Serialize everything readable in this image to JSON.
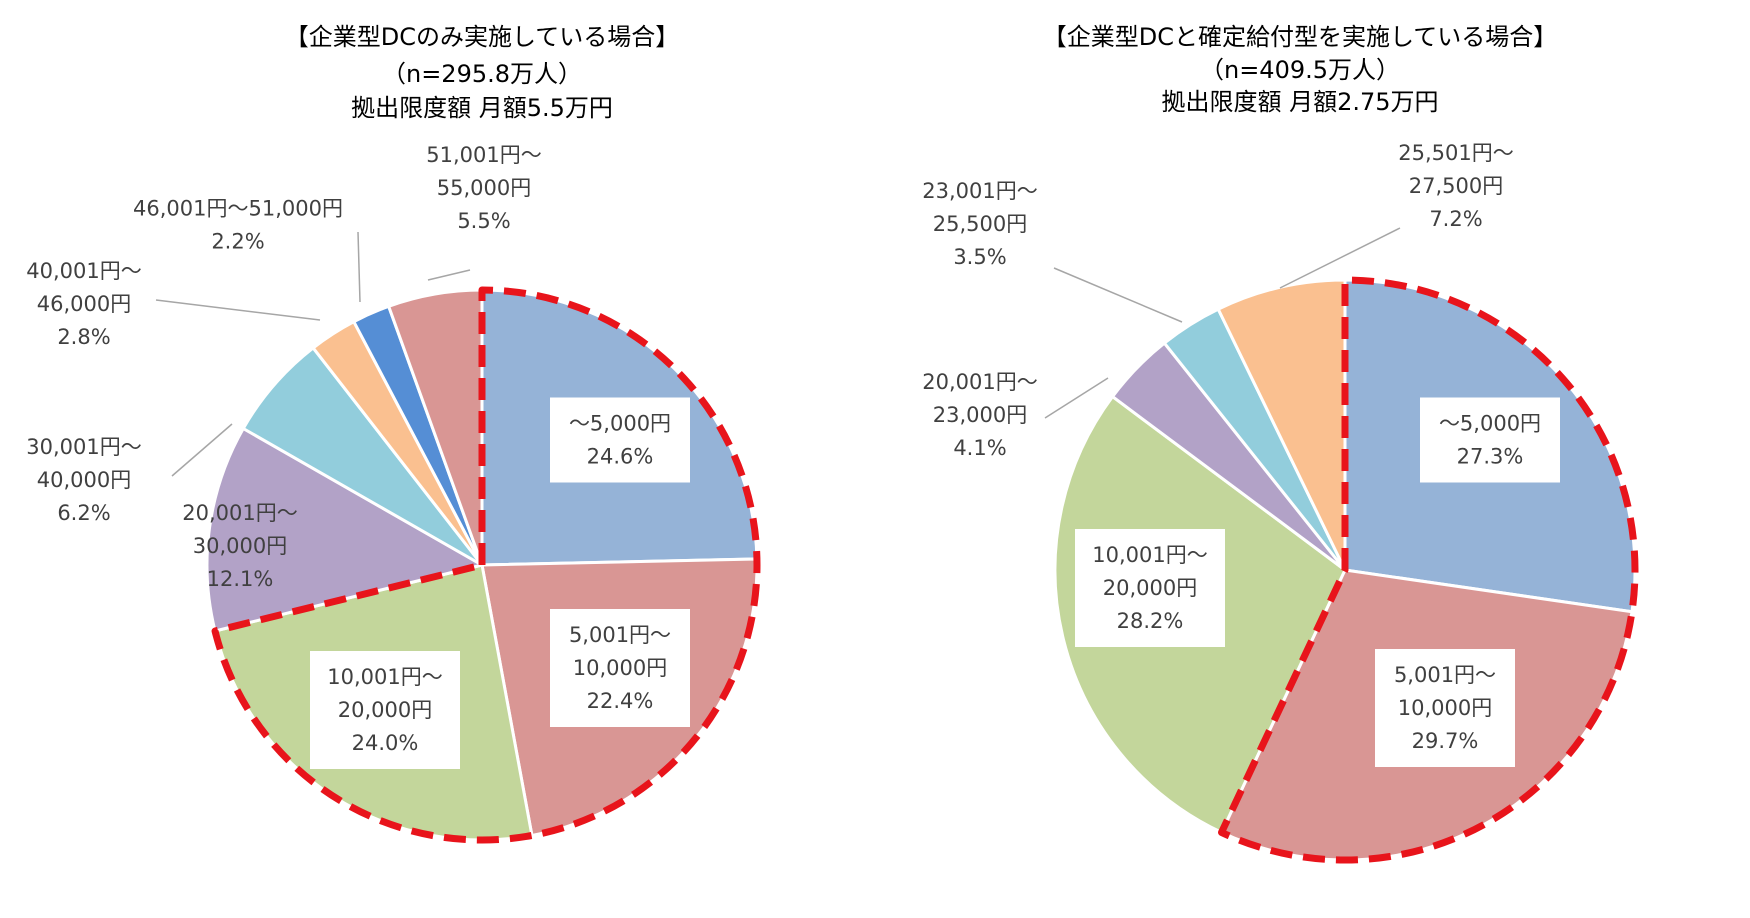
{
  "colors": {
    "c1": "#95b3d7",
    "c2": "#d99694",
    "c3": "#c3d69b",
    "c4": "#b2a2c7",
    "c5": "#92cddc",
    "c6": "#fac090",
    "c7": "#558ed5",
    "highlight": "#e8141b"
  },
  "chart_data": [
    {
      "type": "pie",
      "title_lines": [
        "【企業型DCのみ実施している場合】",
        "（n=295.8万人）",
        "拠出限度額 月額5.5万円"
      ],
      "slices": [
        {
          "label_lines": [
            "〜5,000円"
          ],
          "pct_label": "24.6%",
          "value": 24.6,
          "color": "#95b3d7",
          "highlighted": true
        },
        {
          "label_lines": [
            "5,001円〜",
            "10,000円"
          ],
          "pct_label": "22.4%",
          "value": 22.4,
          "color": "#d99694",
          "highlighted": true
        },
        {
          "label_lines": [
            "10,001円〜",
            "20,000円"
          ],
          "pct_label": "24.0%",
          "value": 24.0,
          "color": "#c3d69b",
          "highlighted": true
        },
        {
          "label_lines": [
            "20,001円〜",
            "30,000円"
          ],
          "pct_label": "12.1%",
          "value": 12.1,
          "color": "#b2a2c7",
          "highlighted": false
        },
        {
          "label_lines": [
            "30,001円〜",
            "40,000円"
          ],
          "pct_label": "6.2%",
          "value": 6.2,
          "color": "#92cddc",
          "highlighted": false
        },
        {
          "label_lines": [
            "40,001円〜",
            "46,000円"
          ],
          "pct_label": "2.8%",
          "value": 2.8,
          "color": "#fac090",
          "highlighted": false
        },
        {
          "label_lines": [
            "46,001円〜51,000円"
          ],
          "pct_label": "2.2%",
          "value": 2.2,
          "color": "#558ed5",
          "highlighted": false
        },
        {
          "label_lines": [
            "51,001円〜",
            "55,000円"
          ],
          "pct_label": "5.5%",
          "value": 5.5,
          "color": "#d99694",
          "highlighted": false
        }
      ]
    },
    {
      "type": "pie",
      "title_lines": [
        "【企業型DCと確定給付型を実施している場合】",
        "（n=409.5万人）",
        "拠出限度額 月額2.75万円"
      ],
      "slices": [
        {
          "label_lines": [
            "〜5,000円"
          ],
          "pct_label": "27.3%",
          "value": 27.3,
          "color": "#95b3d7",
          "highlighted": true
        },
        {
          "label_lines": [
            "5,001円〜",
            "10,000円"
          ],
          "pct_label": "29.7%",
          "value": 29.7,
          "color": "#d99694",
          "highlighted": true
        },
        {
          "label_lines": [
            "10,001円〜",
            "20,000円"
          ],
          "pct_label": "28.2%",
          "value": 28.2,
          "color": "#c3d69b",
          "highlighted": false
        },
        {
          "label_lines": [
            "20,001円〜",
            "23,000円"
          ],
          "pct_label": "4.1%",
          "value": 4.1,
          "color": "#b2a2c7",
          "highlighted": false
        },
        {
          "label_lines": [
            "23,001円〜",
            "25,500円"
          ],
          "pct_label": "3.5%",
          "value": 3.5,
          "color": "#92cddc",
          "highlighted": false
        },
        {
          "label_lines": [
            "25,501円〜",
            "27,500円"
          ],
          "pct_label": "7.2%",
          "value": 7.2,
          "color": "#fac090",
          "highlighted": false
        }
      ]
    }
  ]
}
